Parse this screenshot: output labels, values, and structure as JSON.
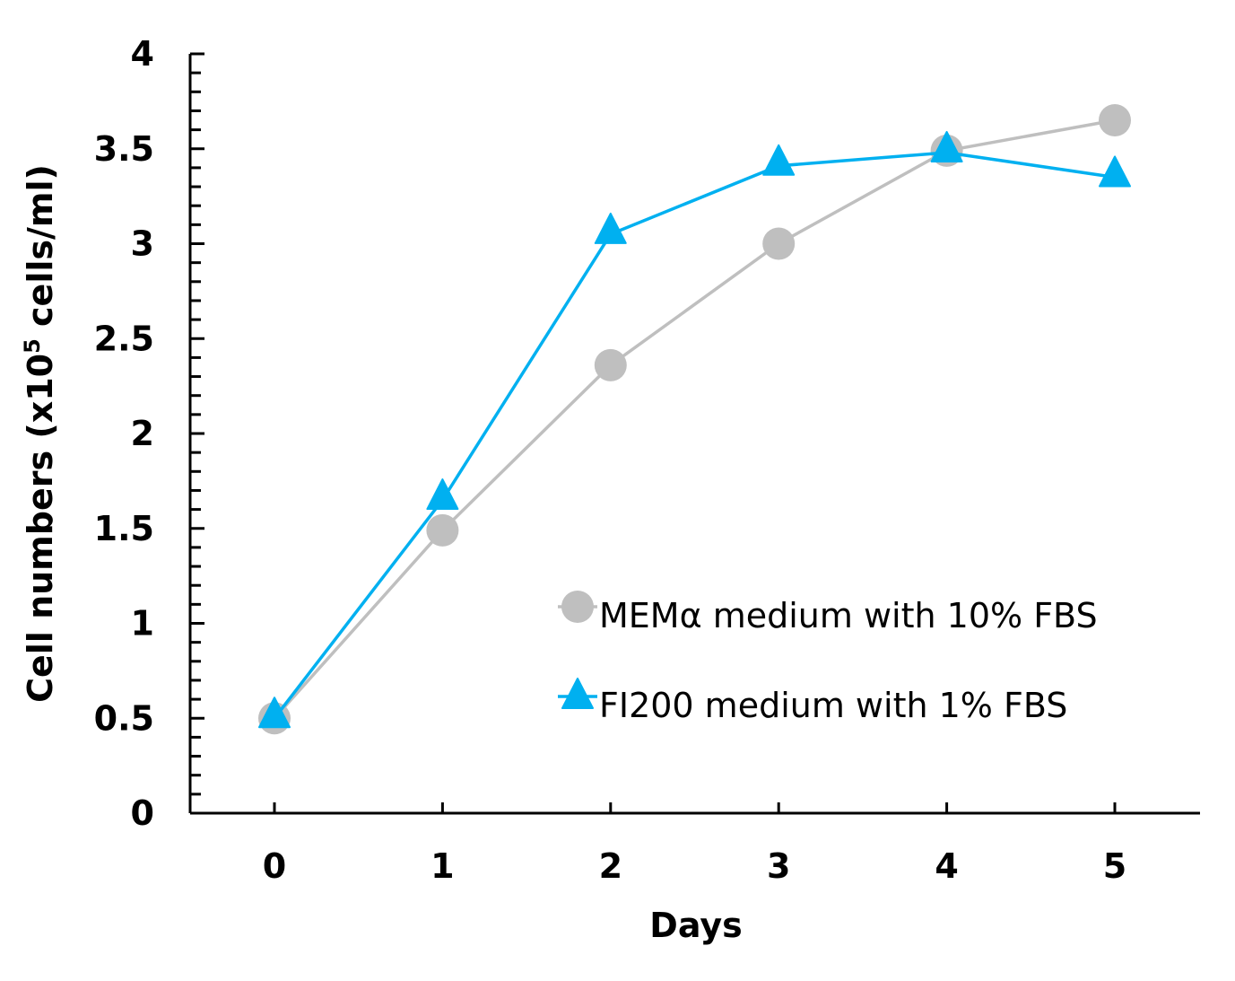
{
  "chart_data": {
    "type": "line",
    "xlabel": "Days",
    "ylabel": "Cell numbers (x10",
    "ylabel_sup": "5",
    "ylabel_tail": " cells/ml)",
    "x": [
      0,
      1,
      2,
      3,
      4,
      5
    ],
    "xticks": [
      "0",
      "1",
      "2",
      "3",
      "4",
      "5"
    ],
    "yticks": [
      "0",
      "0.5",
      "1",
      "1.5",
      "2",
      "2.5",
      "3",
      "3.5",
      "4"
    ],
    "ylim": [
      0,
      4
    ],
    "xlim": [
      -0.5,
      5.5
    ],
    "grid": false,
    "legend_position": "lower-right",
    "series": [
      {
        "name": "MEMα medium with 10% FBS",
        "marker": "circle",
        "color": "#bfbfbf",
        "values": [
          0.5,
          1.49,
          2.36,
          3.0,
          3.49,
          3.65
        ],
        "errors": [
          0.02,
          0.04,
          0.05,
          0.02,
          0.02,
          0.02
        ]
      },
      {
        "name": "FI200 medium with 1% FBS",
        "marker": "triangle",
        "color": "#00b0f0",
        "values": [
          0.5,
          1.65,
          3.05,
          3.41,
          3.48,
          3.35
        ],
        "errors": [
          0.01,
          0.02,
          0.02,
          0.02,
          0.02,
          0.02
        ]
      }
    ]
  }
}
